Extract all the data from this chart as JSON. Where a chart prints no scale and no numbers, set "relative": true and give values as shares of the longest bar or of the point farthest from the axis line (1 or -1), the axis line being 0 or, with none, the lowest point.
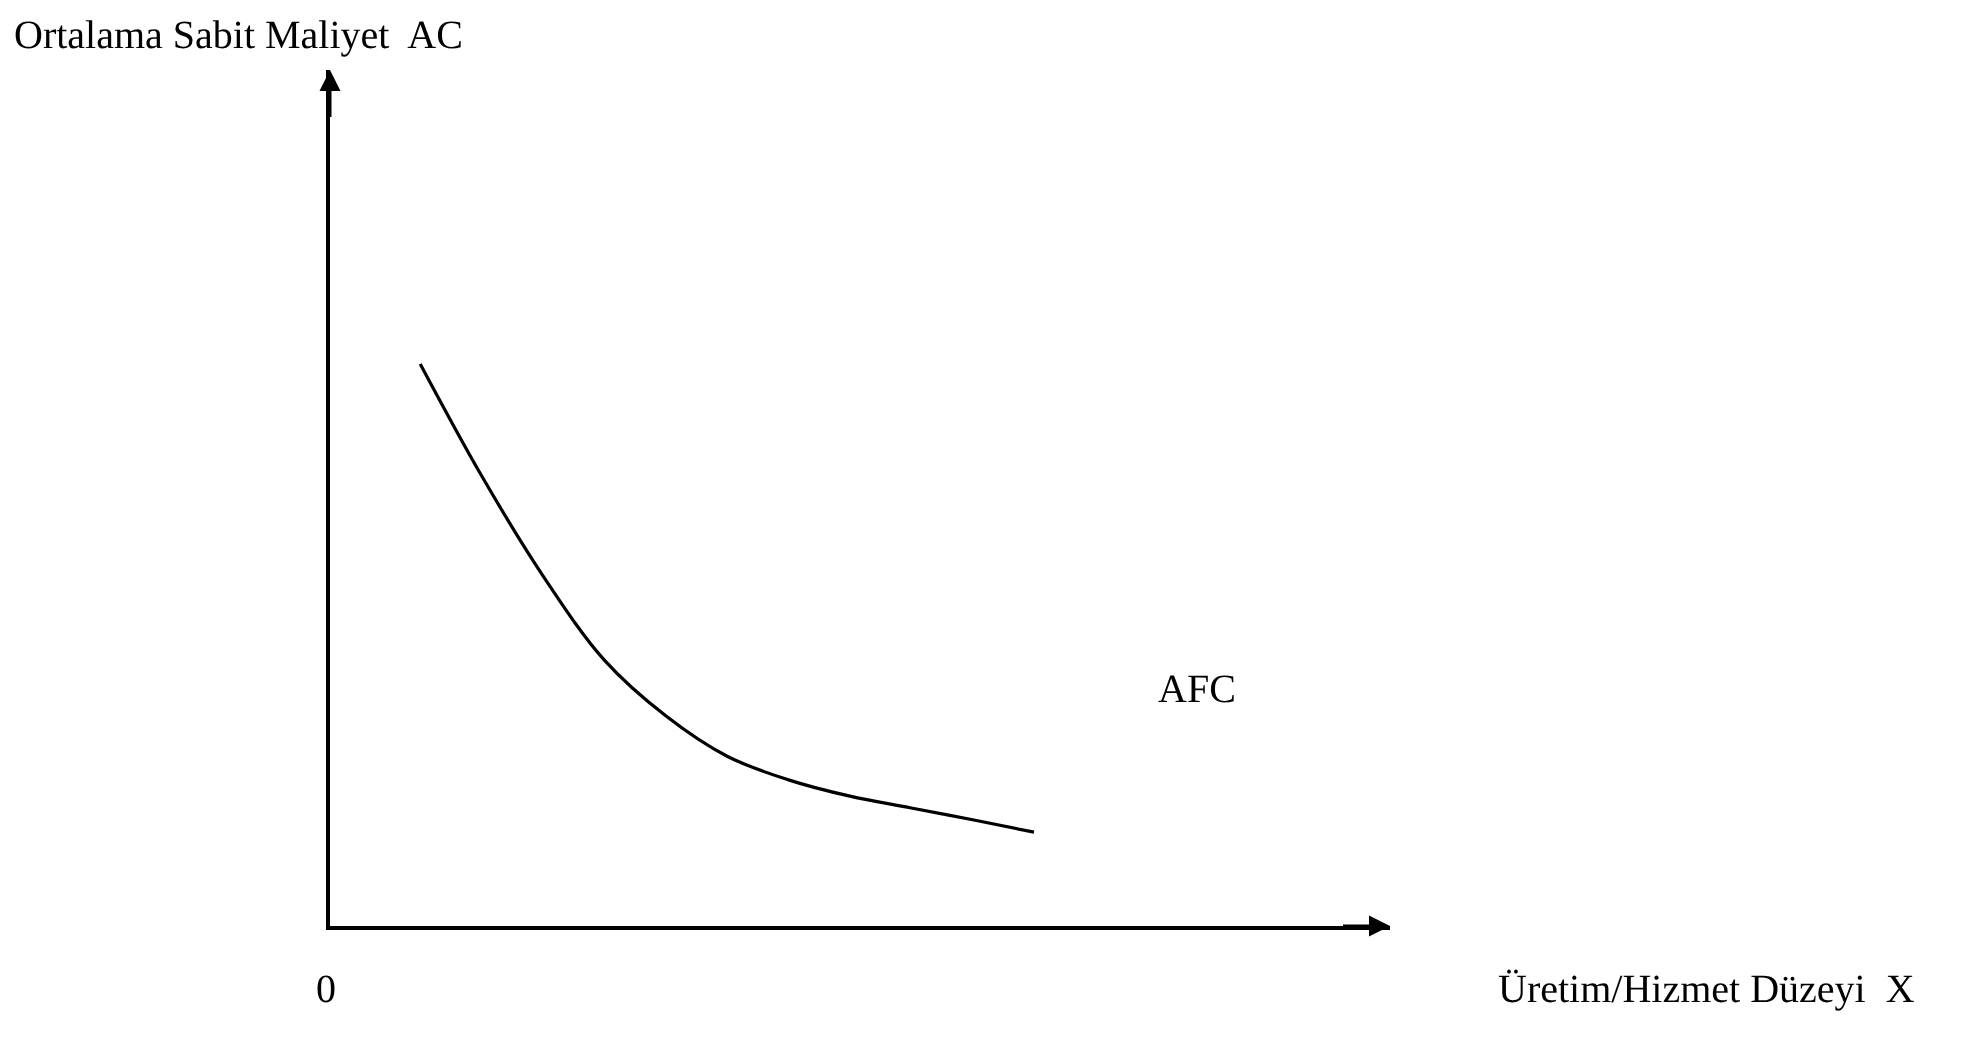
{
  "chart_data": {
    "type": "line",
    "relative": true,
    "categories": [
      null,
      null,
      null,
      null,
      null,
      null,
      null,
      null,
      null,
      null,
      null
    ],
    "series": [
      {
        "color": "#000000",
        "values": [
          1,
          0.801,
          0.623,
          0.473,
          0.374,
          0.302,
          0.26,
          0.231,
          0.21,
          0.189,
          0.167
        ]
      }
    ],
    "annotations": [
      "Ortalama Sabit Maliyet  AC",
      "AFC",
      "0",
      "Üretim/Hizmet Düzeyi  X"
    ],
    "marker": "none",
    "line_style": "solid"
  }
}
